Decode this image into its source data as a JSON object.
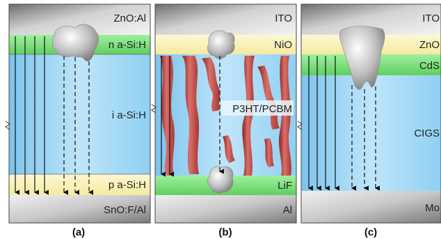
{
  "panels": [
    {
      "caption": "(a)",
      "layers": {
        "top": "ZnO:Al",
        "n_layer": "n a-Si:H",
        "i_layer": "i a-Si:H",
        "p_layer": "p a-Si:H",
        "bottom": "SnO:F/Al"
      }
    },
    {
      "caption": "(b)",
      "layers": {
        "top": "ITO",
        "htl": "NiO",
        "active": "P3HT/PCBM",
        "etl": "LiF",
        "bottom": "Al"
      }
    },
    {
      "caption": "(c)",
      "layers": {
        "top": "ITO",
        "window": "ZnO",
        "buffer": "CdS",
        "absorber": "CIGS",
        "bottom": "Mo"
      }
    }
  ],
  "colors": {
    "metal_gray": "#9a9a9a",
    "tco_yellow": "#fbf3b8",
    "green_layer": "#7ee07e",
    "absorber_blue": "#9fd5f3",
    "polymer_red": "#b8403c",
    "defect_gray": "#b0b0b0"
  }
}
